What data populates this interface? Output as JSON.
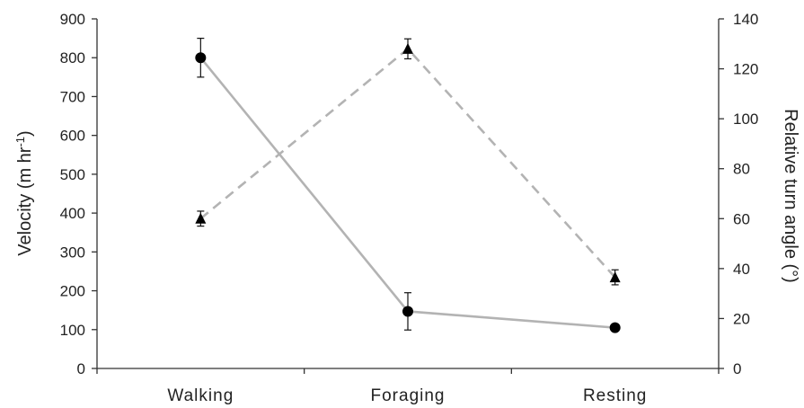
{
  "chart_data": {
    "type": "line",
    "categories": [
      "Walking",
      "Foraging",
      "Resting"
    ],
    "y_left": {
      "label_main": "Velocity (m hr",
      "label_sup": "-1",
      "label_end": ")",
      "range": [
        0,
        900
      ],
      "ticks": [
        "0",
        "100",
        "200",
        "300",
        "400",
        "500",
        "600",
        "700",
        "800",
        "900"
      ]
    },
    "y_right": {
      "label": "Relative turn angle (°)",
      "range": [
        0,
        140
      ],
      "ticks": [
        "0",
        "20",
        "40",
        "60",
        "80",
        "100",
        "120",
        "140"
      ]
    },
    "series": [
      {
        "axis": "left",
        "marker": "circle",
        "line_style": "solid",
        "color": "#b3b3b3",
        "marker_color": "#000000",
        "values": [
          800,
          147,
          105
        ],
        "errors": [
          50,
          48,
          5
        ]
      },
      {
        "axis": "right",
        "marker": "triangle",
        "line_style": "dashed",
        "color": "#b3b3b3",
        "marker_color": "#000000",
        "values": [
          60,
          128,
          36.5
        ],
        "errors": [
          3,
          4,
          3
        ]
      }
    ],
    "grid": false
  }
}
